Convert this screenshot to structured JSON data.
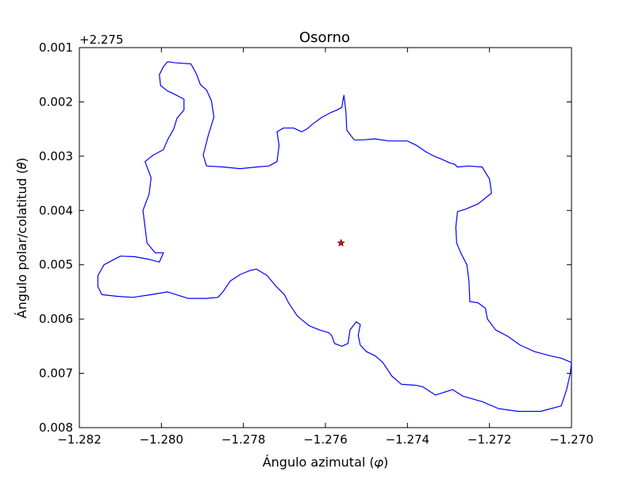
{
  "chart_data": {
    "type": "line",
    "title": "Osorno",
    "xlabel": "Ángulo azimutal (𝜑)",
    "ylabel": "Ángulo polar/colatitud (𝜃)",
    "y_offset_label": "+2.275",
    "xlim": [
      -1.282,
      -1.27
    ],
    "ylim_offset": [
      0.001,
      0.008
    ],
    "y_axis_inverted": true,
    "grid": false,
    "x_ticks": [
      -1.282,
      -1.28,
      -1.278,
      -1.276,
      -1.274,
      -1.272,
      -1.27
    ],
    "x_tick_labels": [
      "−1.282",
      "−1.280",
      "−1.278",
      "−1.276",
      "−1.274",
      "−1.272",
      "−1.270"
    ],
    "y_ticks": [
      0.001,
      0.002,
      0.003,
      0.004,
      0.005,
      0.006,
      0.007,
      0.008
    ],
    "y_tick_labels": [
      "0.001",
      "0.002",
      "0.003",
      "0.004",
      "0.005",
      "0.006",
      "0.007",
      "0.008"
    ],
    "series": [
      {
        "kind": "boundary",
        "color": "#0000ff",
        "points_offset": [
          [
            -1.27985,
            0.00126
          ],
          [
            -1.27965,
            0.00128
          ],
          [
            -1.27928,
            0.0013
          ],
          [
            -1.27915,
            0.00148
          ],
          [
            -1.27905,
            0.00168
          ],
          [
            -1.2789,
            0.00178
          ],
          [
            -1.27878,
            0.00198
          ],
          [
            -1.27872,
            0.00228
          ],
          [
            -1.27885,
            0.0026
          ],
          [
            -1.27898,
            0.00298
          ],
          [
            -1.2789,
            0.00318
          ],
          [
            -1.27848,
            0.0032
          ],
          [
            -1.27808,
            0.00323
          ],
          [
            -1.27768,
            0.0032
          ],
          [
            -1.27738,
            0.00318
          ],
          [
            -1.27718,
            0.0031
          ],
          [
            -1.27713,
            0.0028
          ],
          [
            -1.27718,
            0.00255
          ],
          [
            -1.27702,
            0.00248
          ],
          [
            -1.27678,
            0.00248
          ],
          [
            -1.27658,
            0.00255
          ],
          [
            -1.27645,
            0.0025
          ],
          [
            -1.2763,
            0.0024
          ],
          [
            -1.27608,
            0.00228
          ],
          [
            -1.27588,
            0.0022
          ],
          [
            -1.27572,
            0.00215
          ],
          [
            -1.2756,
            0.0021
          ],
          [
            -1.27558,
            0.002
          ],
          [
            -1.27555,
            0.00188
          ],
          [
            -1.2755,
            0.00218
          ],
          [
            -1.27548,
            0.00252
          ],
          [
            -1.2753,
            0.0027
          ],
          [
            -1.27508,
            0.0027
          ],
          [
            -1.2748,
            0.00268
          ],
          [
            -1.27445,
            0.00272
          ],
          [
            -1.27425,
            0.00272
          ],
          [
            -1.274,
            0.00272
          ],
          [
            -1.27378,
            0.0028
          ],
          [
            -1.27355,
            0.00292
          ],
          [
            -1.27335,
            0.003
          ],
          [
            -1.27318,
            0.00305
          ],
          [
            -1.27298,
            0.00312
          ],
          [
            -1.27285,
            0.00315
          ],
          [
            -1.27278,
            0.0032
          ],
          [
            -1.2725,
            0.00318
          ],
          [
            -1.27218,
            0.0032
          ],
          [
            -1.272,
            0.00342
          ],
          [
            -1.27195,
            0.00368
          ],
          [
            -1.27228,
            0.00388
          ],
          [
            -1.2726,
            0.00398
          ],
          [
            -1.27278,
            0.00402
          ],
          [
            -1.27282,
            0.0043
          ],
          [
            -1.2728,
            0.0046
          ],
          [
            -1.2727,
            0.00478
          ],
          [
            -1.27255,
            0.005
          ],
          [
            -1.2725,
            0.0053
          ],
          [
            -1.27248,
            0.00568
          ],
          [
            -1.27228,
            0.0057
          ],
          [
            -1.2721,
            0.0058
          ],
          [
            -1.27205,
            0.006
          ],
          [
            -1.27185,
            0.0062
          ],
          [
            -1.27155,
            0.00632
          ],
          [
            -1.27125,
            0.00648
          ],
          [
            -1.2709,
            0.0066
          ],
          [
            -1.2705,
            0.00668
          ],
          [
            -1.27025,
            0.00672
          ],
          [
            -1.27,
            0.0068
          ],
          [
            -1.27003,
            0.007
          ],
          [
            -1.27012,
            0.0073
          ],
          [
            -1.27025,
            0.0076
          ],
          [
            -1.27075,
            0.0077
          ],
          [
            -1.2713,
            0.0077
          ],
          [
            -1.27178,
            0.00765
          ],
          [
            -1.27218,
            0.00752
          ],
          [
            -1.27265,
            0.00742
          ],
          [
            -1.2729,
            0.0073
          ],
          [
            -1.27332,
            0.0074
          ],
          [
            -1.27362,
            0.00725
          ],
          [
            -1.2738,
            0.00722
          ],
          [
            -1.27415,
            0.0072
          ],
          [
            -1.27438,
            0.00705
          ],
          [
            -1.2746,
            0.0068
          ],
          [
            -1.27478,
            0.00668
          ],
          [
            -1.275,
            0.0066
          ],
          [
            -1.27515,
            0.00648
          ],
          [
            -1.2752,
            0.0063
          ],
          [
            -1.27515,
            0.0061
          ],
          [
            -1.27525,
            0.00605
          ],
          [
            -1.2754,
            0.0062
          ],
          [
            -1.27545,
            0.00645
          ],
          [
            -1.2756,
            0.0065
          ],
          [
            -1.27578,
            0.00645
          ],
          [
            -1.27585,
            0.0063
          ],
          [
            -1.27592,
            0.00625
          ],
          [
            -1.27615,
            0.0062
          ],
          [
            -1.2764,
            0.00612
          ],
          [
            -1.27668,
            0.00595
          ],
          [
            -1.2769,
            0.0057
          ],
          [
            -1.277,
            0.00555
          ],
          [
            -1.2772,
            0.0054
          ],
          [
            -1.27742,
            0.0052
          ],
          [
            -1.27768,
            0.00508
          ],
          [
            -1.27782,
            0.0051
          ],
          [
            -1.27808,
            0.00518
          ],
          [
            -1.27832,
            0.0053
          ],
          [
            -1.2785,
            0.0055
          ],
          [
            -1.27862,
            0.0056
          ],
          [
            -1.2789,
            0.00562
          ],
          [
            -1.27935,
            0.00562
          ],
          [
            -1.27985,
            0.0055
          ],
          [
            -1.28025,
            0.00555
          ],
          [
            -1.2807,
            0.0056
          ],
          [
            -1.2811,
            0.00558
          ],
          [
            -1.28145,
            0.00555
          ],
          [
            -1.28155,
            0.0054
          ],
          [
            -1.28155,
            0.0052
          ],
          [
            -1.2814,
            0.005
          ],
          [
            -1.281,
            0.00484
          ],
          [
            -1.28065,
            0.00485
          ],
          [
            -1.2803,
            0.0049
          ],
          [
            -1.28005,
            0.00495
          ],
          [
            -1.27995,
            0.00478
          ],
          [
            -1.28015,
            0.00478
          ],
          [
            -1.28035,
            0.0046
          ],
          [
            -1.2804,
            0.0043
          ],
          [
            -1.28045,
            0.004
          ],
          [
            -1.2803,
            0.0037
          ],
          [
            -1.28025,
            0.0034
          ],
          [
            -1.2804,
            0.0031
          ],
          [
            -1.2802,
            0.00298
          ],
          [
            -1.27995,
            0.00288
          ],
          [
            -1.27985,
            0.0027
          ],
          [
            -1.2797,
            0.0025
          ],
          [
            -1.27962,
            0.0023
          ],
          [
            -1.27945,
            0.00215
          ],
          [
            -1.27945,
            0.00195
          ],
          [
            -1.2797,
            0.00185
          ],
          [
            -1.27985,
            0.0018
          ],
          [
            -1.28002,
            0.0017
          ],
          [
            -1.28005,
            0.0015
          ],
          [
            -1.27995,
            0.00135
          ],
          [
            -1.27985,
            0.00126
          ]
        ]
      },
      {
        "kind": "center-marker",
        "marker": "star",
        "color": "#ff0000",
        "x": -1.27562,
        "y_offset": 0.0046
      }
    ]
  }
}
